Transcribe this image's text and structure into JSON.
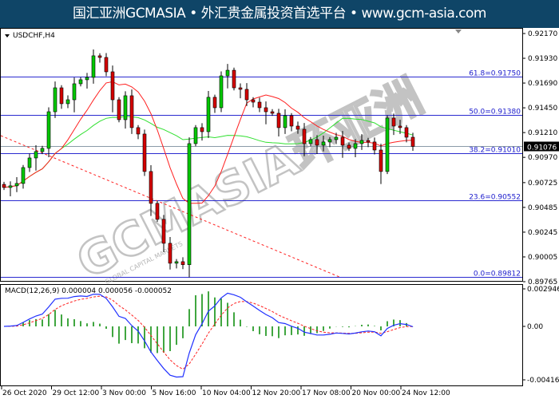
{
  "banner": {
    "text": "国汇亚洲GCMASIA • 外汇贵金属投资首选平台 • www.gcm-asia.com"
  },
  "watermark": {
    "text": "GCMASIA环亚洲",
    "sub": "GLOBAL CAPITAL MARKETS"
  },
  "colors": {
    "banner": "#0f4567",
    "bull": "#00c800",
    "bear": "#d40000",
    "fib": "#2a2ad0",
    "ma_fast": "#ff2020",
    "ma_slow": "#30e030",
    "macd": "#2030ff",
    "signal": "#ff2020",
    "histogram": "#008800"
  },
  "chart_data": [
    {
      "type": "candlestick",
      "symbol_label": "USDCHF,H4",
      "current_price": "0.91076",
      "y_ticks": [
        "0.92170",
        "0.91930",
        "0.91690",
        "0.91450",
        "0.91210",
        "0.90970",
        "0.90725",
        "0.90485",
        "0.90245",
        "0.90005",
        "0.89765"
      ],
      "ylim": [
        0.89765,
        0.9217
      ],
      "closes": [
        0.90678,
        0.90694,
        0.90717,
        0.90871,
        0.90964,
        0.91026,
        0.91057,
        0.91412,
        0.91644,
        0.9149,
        0.91528,
        0.91683,
        0.91722,
        0.91745,
        0.91954,
        0.91938,
        0.91799,
        0.91528,
        0.91335,
        0.91567,
        0.91258,
        0.91196,
        0.90833,
        0.90524,
        0.90369,
        0.90137,
        0.89944,
        0.89959,
        0.8993,
        0.91103,
        0.91258,
        0.91219,
        0.91552,
        0.91451,
        0.9176,
        0.91814,
        0.91644,
        0.91629,
        0.91528,
        0.91505,
        0.91451,
        0.91412,
        0.91397,
        0.91258,
        0.91374,
        0.91273,
        0.91242,
        0.91103,
        0.91142,
        0.91088,
        0.91119,
        0.91142,
        0.91165,
        0.91088,
        0.91057,
        0.91103,
        0.91134,
        0.91119,
        0.91041,
        0.90833,
        0.91351,
        0.91273,
        0.91258,
        0.91165,
        0.91076
      ],
      "fib_levels": [
        {
          "label": "61.8=0.91750",
          "value": 0.9175
        },
        {
          "label": "50.0=0.91380",
          "value": 0.9138
        },
        {
          "label": "38.2=0.91010",
          "value": 0.9101
        },
        {
          "label": "23.6=0.90552",
          "value": 0.90552
        },
        {
          "label": "0.0=0.89812",
          "value": 0.89812
        }
      ],
      "trendline": {
        "style": "dashed",
        "color": "#ff2020"
      },
      "x_labels": [
        "26 Oct 2020",
        "29 Oct 12:00",
        "3 Nov 00:00",
        "5 Nov 16:00",
        "10 Nov 04:00",
        "12 Nov 20:00",
        "17 Nov 08:00",
        "20 Nov 00:00",
        "24 Nov 12:00"
      ]
    },
    {
      "type": "macd",
      "label": "MACD(12,26,9) 0.000004 0.000056 -0.000052",
      "y_ticks": [
        "0.002946",
        "0.00",
        "-0.004163"
      ],
      "ylim": [
        -0.004163,
        0.002946
      ]
    }
  ]
}
